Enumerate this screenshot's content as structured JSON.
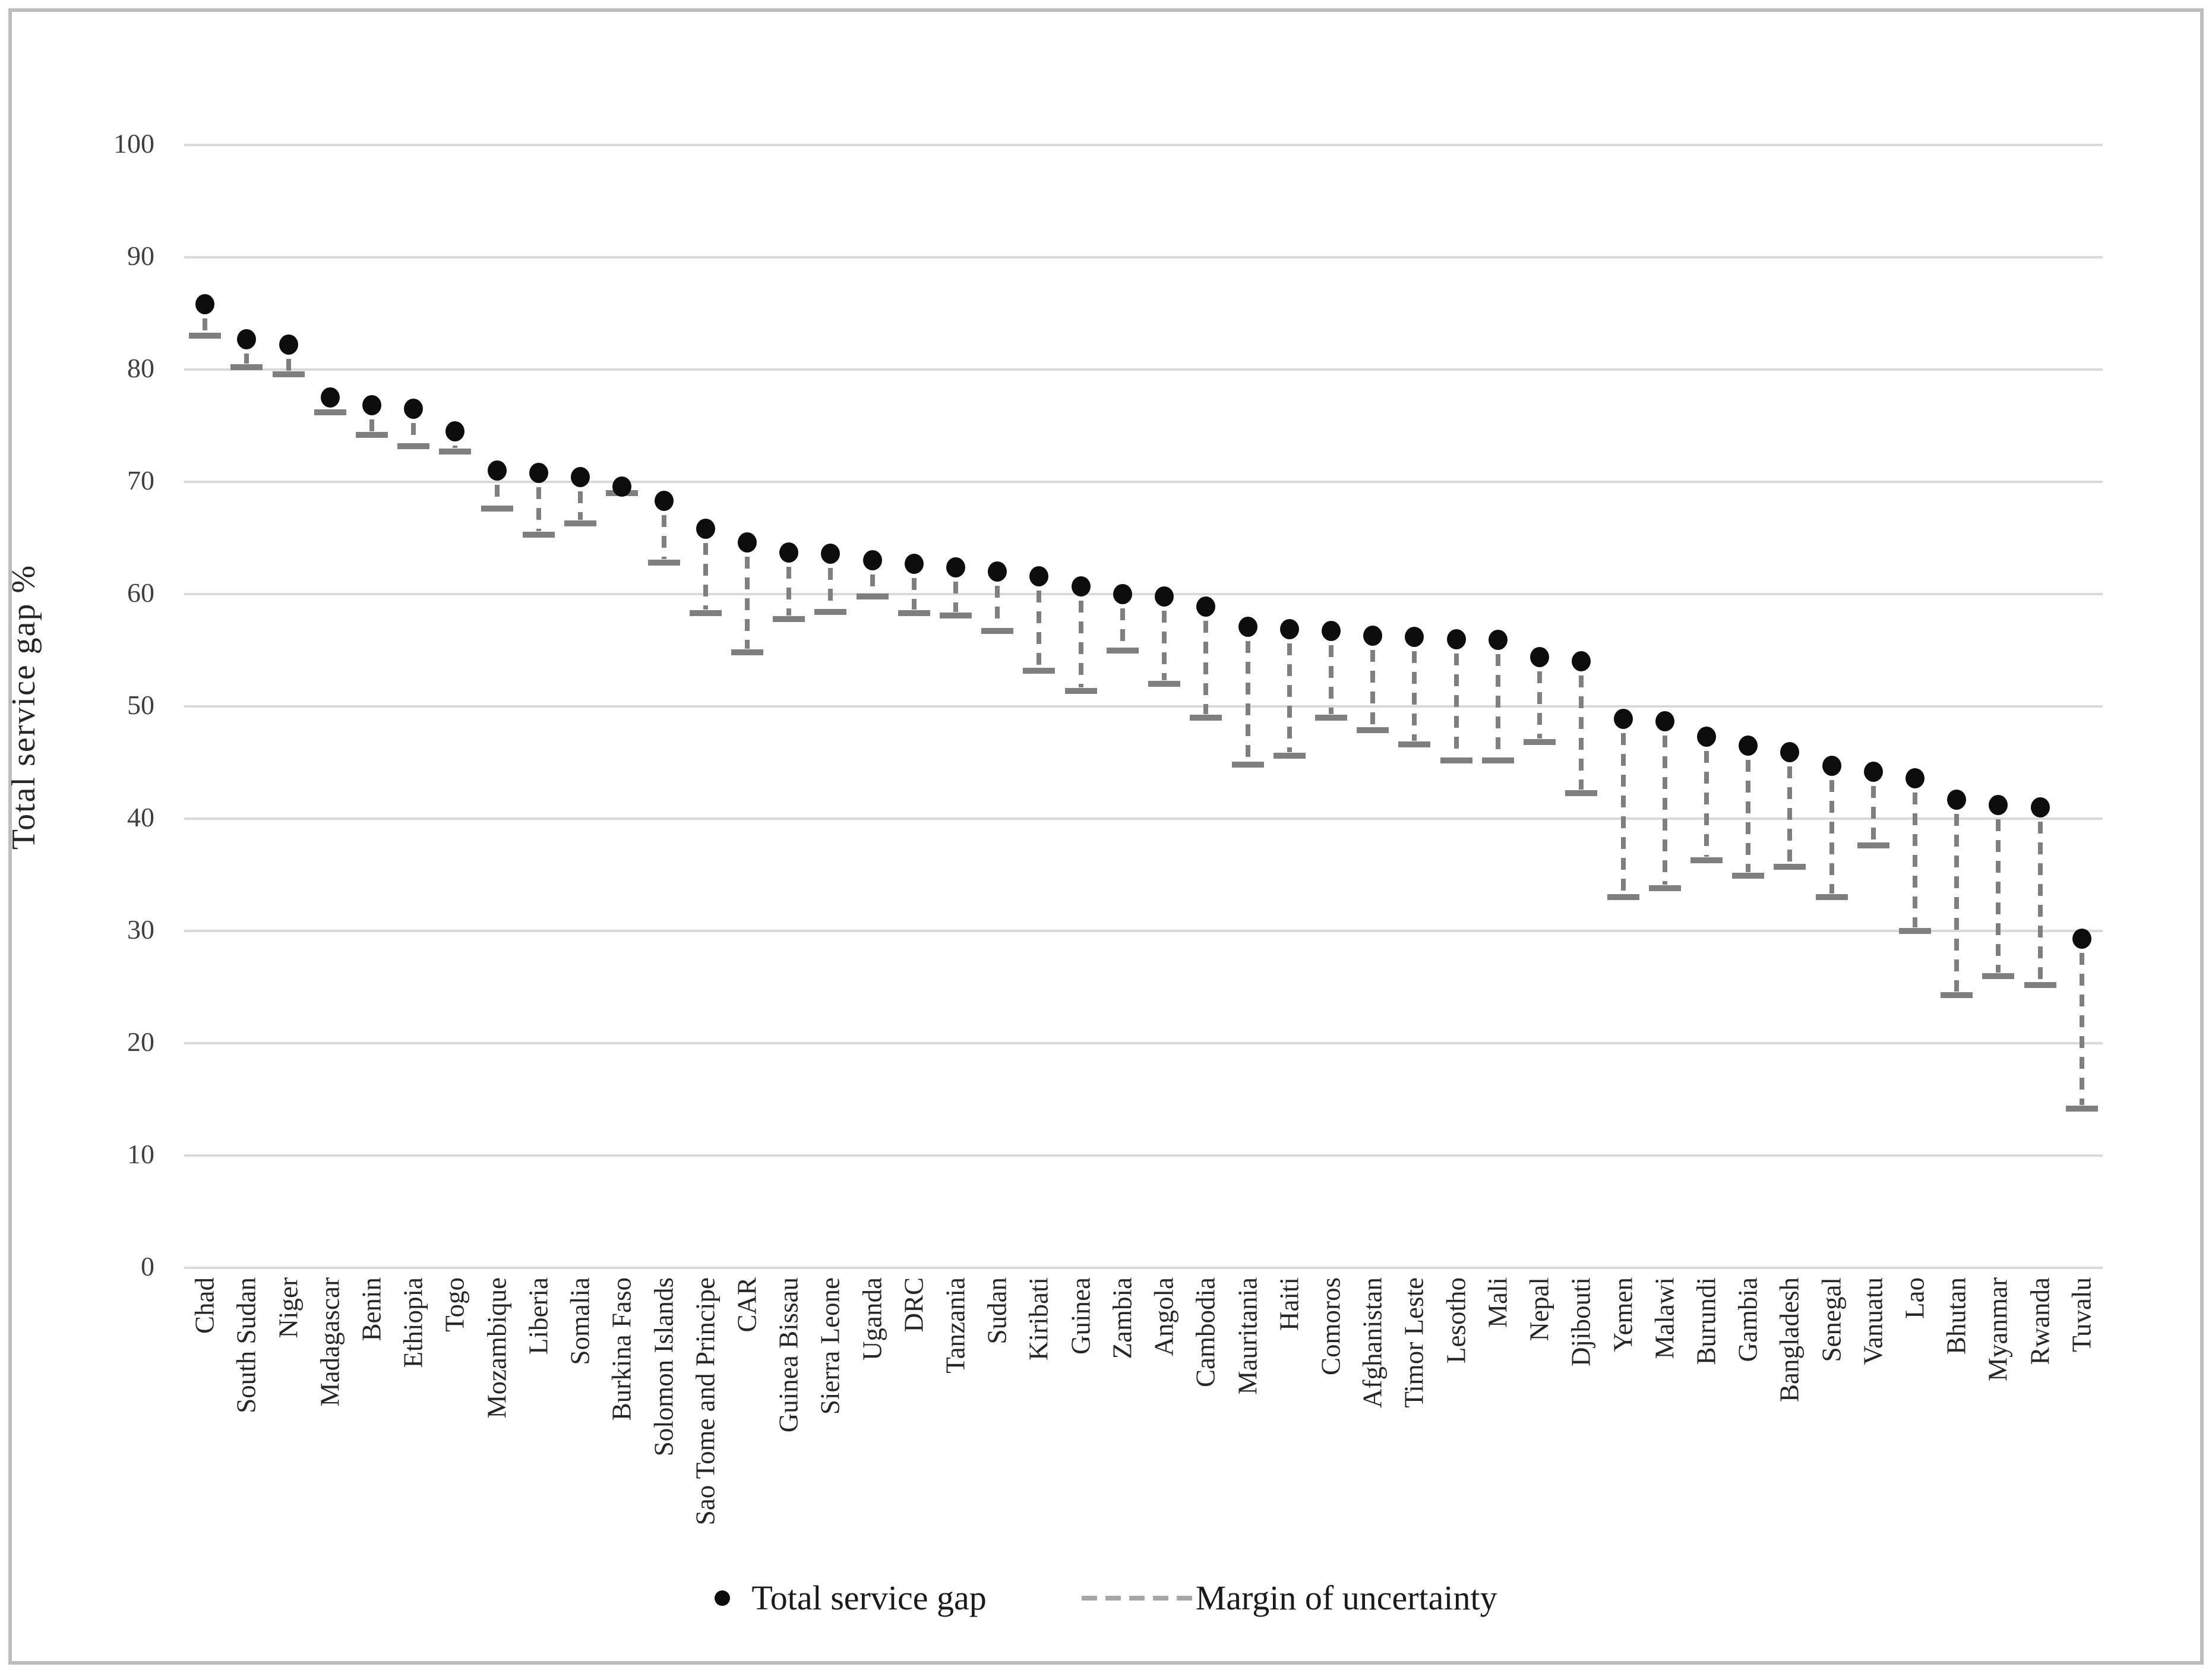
{
  "chart_data": {
    "type": "scatter",
    "title": "",
    "xlabel": "",
    "ylabel": "Total service gap %",
    "ylim": [
      0,
      100
    ],
    "yticks": [
      100,
      90,
      80,
      70,
      60,
      50,
      40,
      30,
      20,
      10,
      0
    ],
    "grid": "horizontal",
    "gridline_color": "#d9d9d9",
    "legend_position": "bottom",
    "series": [
      {
        "name": "Total service gap",
        "type": "point",
        "marker": "filled-circle",
        "color": "#0d0d0d"
      },
      {
        "name": "Margin of uncertainty",
        "type": "error-bar-down",
        "style": "dashed",
        "color": "#7f7f7f"
      }
    ],
    "points": [
      {
        "country": "Chad",
        "gap": 85.8,
        "low": 83.0
      },
      {
        "country": "South Sudan",
        "gap": 82.7,
        "low": 80.2
      },
      {
        "country": "Niger",
        "gap": 82.2,
        "low": 79.6
      },
      {
        "country": "Madagascar",
        "gap": 77.5,
        "low": 76.2
      },
      {
        "country": "Benin",
        "gap": 76.8,
        "low": 74.2
      },
      {
        "country": "Ethiopia",
        "gap": 76.5,
        "low": 73.2
      },
      {
        "country": "Togo",
        "gap": 74.5,
        "low": 72.7
      },
      {
        "country": "Mozambique",
        "gap": 71.0,
        "low": 67.6
      },
      {
        "country": "Liberia",
        "gap": 70.8,
        "low": 65.3
      },
      {
        "country": "Somalia",
        "gap": 70.4,
        "low": 66.3
      },
      {
        "country": "Burkina Faso",
        "gap": 69.6,
        "low": 69.0
      },
      {
        "country": "Solomon Islands",
        "gap": 68.3,
        "low": 62.8
      },
      {
        "country": "Sao Tome and Principe",
        "gap": 65.8,
        "low": 58.3
      },
      {
        "country": "CAR",
        "gap": 64.6,
        "low": 54.8
      },
      {
        "country": "Guinea Bissau",
        "gap": 63.7,
        "low": 57.8
      },
      {
        "country": "Sierra Leone",
        "gap": 63.6,
        "low": 58.4
      },
      {
        "country": "Uganda",
        "gap": 63.0,
        "low": 59.8
      },
      {
        "country": "DRC",
        "gap": 62.7,
        "low": 58.3
      },
      {
        "country": "Tanzania",
        "gap": 62.4,
        "low": 58.1
      },
      {
        "country": "Sudan",
        "gap": 62.0,
        "low": 56.7
      },
      {
        "country": "Kiribati",
        "gap": 61.6,
        "low": 53.2
      },
      {
        "country": "Guinea",
        "gap": 60.7,
        "low": 51.4
      },
      {
        "country": "Zambia",
        "gap": 60.0,
        "low": 55.0
      },
      {
        "country": "Angola",
        "gap": 59.8,
        "low": 52.0
      },
      {
        "country": "Cambodia",
        "gap": 58.9,
        "low": 49.0
      },
      {
        "country": "Mauritania",
        "gap": 57.1,
        "low": 44.8
      },
      {
        "country": "Haiti",
        "gap": 56.9,
        "low": 45.6
      },
      {
        "country": "Comoros",
        "gap": 56.7,
        "low": 49.0
      },
      {
        "country": "Afghanistan",
        "gap": 56.3,
        "low": 47.9
      },
      {
        "country": "Timor Leste",
        "gap": 56.2,
        "low": 46.6
      },
      {
        "country": "Lesotho",
        "gap": 56.0,
        "low": 45.2
      },
      {
        "country": "Mali",
        "gap": 55.9,
        "low": 45.2
      },
      {
        "country": "Nepal",
        "gap": 54.4,
        "low": 46.8
      },
      {
        "country": "Djibouti",
        "gap": 54.0,
        "low": 42.3
      },
      {
        "country": "Yemen",
        "gap": 48.9,
        "low": 33.0
      },
      {
        "country": "Malawi",
        "gap": 48.7,
        "low": 33.8
      },
      {
        "country": "Burundi",
        "gap": 47.3,
        "low": 36.3
      },
      {
        "country": "Gambia",
        "gap": 46.5,
        "low": 34.9
      },
      {
        "country": "Bangladesh",
        "gap": 45.9,
        "low": 35.7
      },
      {
        "country": "Senegal",
        "gap": 44.7,
        "low": 33.0
      },
      {
        "country": "Vanuatu",
        "gap": 44.2,
        "low": 37.6
      },
      {
        "country": "Lao",
        "gap": 43.6,
        "low": 30.0
      },
      {
        "country": "Bhutan",
        "gap": 41.7,
        "low": 24.3
      },
      {
        "country": "Myanmar",
        "gap": 41.2,
        "low": 26.0
      },
      {
        "country": "Rwanda",
        "gap": 41.0,
        "low": 25.2
      },
      {
        "country": "Tuvalu",
        "gap": 29.3,
        "low": 14.2
      }
    ]
  },
  "legend": {
    "dot_label": "Total service gap",
    "dash_label": "Margin of uncertainty"
  },
  "axis": {
    "y_title": "Total service gap %"
  }
}
